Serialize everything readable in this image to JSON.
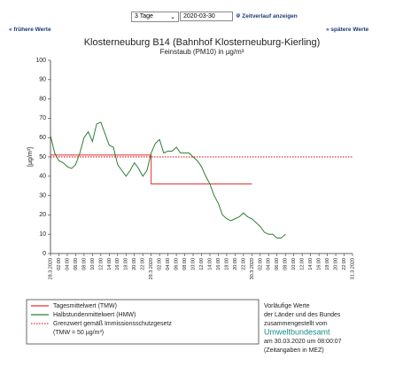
{
  "controls": {
    "period": "3 Tage",
    "date": "2020-03-30",
    "show": "Zeitverlauf anzeigen",
    "prev": "« frühere Werte",
    "next": "» spätere Werte"
  },
  "chart_data": {
    "type": "line",
    "title": "Klosterneuburg B14 (Bahnhof Klosterneuburg-Kierling)",
    "subtitle": "Feinstaub (PM10) in µg/m³",
    "y_label": "[µg/m³]",
    "xlim": [
      0,
      72
    ],
    "ylim": [
      0,
      100
    ],
    "yticks": [
      0,
      10,
      20,
      30,
      40,
      50,
      60,
      70,
      80,
      90,
      100
    ],
    "xticks": [
      {
        "value": 0,
        "label": "28.3.2020"
      },
      {
        "value": 2,
        "label": "02:00"
      },
      {
        "value": 4,
        "label": "04:00"
      },
      {
        "value": 6,
        "label": "06:00"
      },
      {
        "value": 8,
        "label": "08:00"
      },
      {
        "value": 10,
        "label": "10:00"
      },
      {
        "value": 12,
        "label": "12:00"
      },
      {
        "value": 14,
        "label": "14:00"
      },
      {
        "value": 16,
        "label": "16:00"
      },
      {
        "value": 18,
        "label": "18:00"
      },
      {
        "value": 20,
        "label": "20:00"
      },
      {
        "value": 22,
        "label": "22:00"
      },
      {
        "value": 24,
        "label": "29.3.2020"
      },
      {
        "value": 26,
        "label": "02:00"
      },
      {
        "value": 28,
        "label": "04:00"
      },
      {
        "value": 30,
        "label": "06:00"
      },
      {
        "value": 32,
        "label": "08:00"
      },
      {
        "value": 34,
        "label": "10:00"
      },
      {
        "value": 36,
        "label": "12:00"
      },
      {
        "value": 38,
        "label": "14:00"
      },
      {
        "value": 40,
        "label": "16:00"
      },
      {
        "value": 42,
        "label": "18:00"
      },
      {
        "value": 44,
        "label": "20:00"
      },
      {
        "value": 46,
        "label": "22:00"
      },
      {
        "value": 48,
        "label": "30.3.2020"
      },
      {
        "value": 50,
        "label": "02:00"
      },
      {
        "value": 52,
        "label": "04:00"
      },
      {
        "value": 54,
        "label": "06:00"
      },
      {
        "value": 56,
        "label": "08:00"
      },
      {
        "value": 58,
        "label": "10:00"
      },
      {
        "value": 60,
        "label": "12:00"
      },
      {
        "value": 62,
        "label": "14:00"
      },
      {
        "value": 64,
        "label": "16:00"
      },
      {
        "value": 66,
        "label": "18:00"
      },
      {
        "value": 68,
        "label": "20:00"
      },
      {
        "value": 70,
        "label": "22:00"
      },
      {
        "value": 72,
        "label": "31.3.2020"
      }
    ],
    "series": [
      {
        "name": "Tagesmittelwert (TMW)",
        "color": "#e03030",
        "style": "solid",
        "x": [
          0,
          24,
          24,
          48
        ],
        "values": [
          51,
          51,
          36,
          36
        ]
      },
      {
        "name": "Halbstundenmittelwert (HMW)",
        "color": "#2e7d32",
        "style": "solid",
        "x": [
          0,
          1,
          2,
          3,
          4,
          5,
          6,
          7,
          8,
          9,
          10,
          11,
          12,
          13,
          14,
          15,
          16,
          17,
          18,
          19,
          20,
          21,
          22,
          23,
          24,
          25,
          26,
          27,
          28,
          29,
          30,
          31,
          32,
          33,
          34,
          35,
          36,
          37,
          38,
          39,
          40,
          41,
          42,
          43,
          44,
          45,
          46,
          47,
          48,
          49,
          50,
          51,
          52,
          53,
          54,
          55,
          56
        ],
        "values": [
          61,
          52,
          48,
          47,
          45,
          44,
          46,
          52,
          60,
          63,
          58,
          67,
          68,
          62,
          56,
          55,
          46,
          43,
          40,
          43,
          47,
          44,
          40,
          43,
          52,
          57,
          59,
          52,
          53,
          53,
          55,
          52,
          52,
          52,
          50,
          48,
          45,
          40,
          36,
          30,
          26,
          20,
          18,
          17,
          18,
          19,
          21,
          19,
          18,
          16,
          14,
          11,
          10,
          10,
          8,
          8,
          10
        ]
      },
      {
        "name": "Grenzwert gemäß Immissionsschutzgesetz",
        "color": "#e03030",
        "style": "dotted",
        "x": [
          0,
          72
        ],
        "values": [
          50,
          50
        ]
      }
    ],
    "limit_note": "(TMW = 50 µg/m³)",
    "note": [
      "Vorläufige Werte",
      "der Länder und des Bundes",
      "zusammengestellt vom",
      "Umweltbundesamt",
      "am 30.03.2020 um 08:00:07",
      "(Zeitangaben in MEZ)"
    ]
  }
}
